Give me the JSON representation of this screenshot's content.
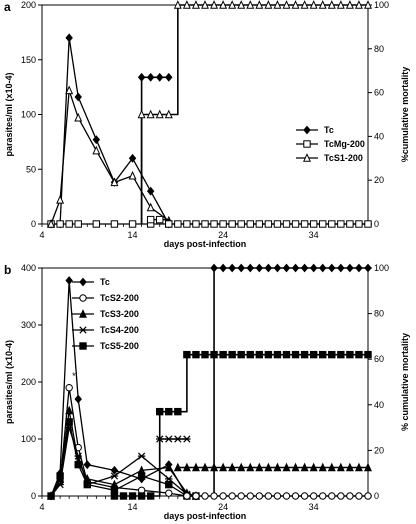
{
  "chart_data": [
    {
      "panel": "a",
      "type": "line",
      "xlabel": "days post-infection",
      "ylabel": "parasites/ml (x10-4)",
      "y2label": "%cumulative mortality",
      "xlim": [
        4,
        40
      ],
      "ylim": [
        0,
        200
      ],
      "y2lim": [
        0,
        100
      ],
      "xticks": [
        4,
        14,
        24,
        34
      ],
      "yticks": [
        0,
        50,
        100,
        150,
        200
      ],
      "y2ticks": [
        0,
        20,
        40,
        60,
        80,
        100
      ],
      "legend_position": "right",
      "legend": [
        {
          "label": "Tc",
          "marker": "diamond-filled"
        },
        {
          "label": "TcMg-200",
          "marker": "square-open"
        },
        {
          "label": "TcS1-200",
          "marker": "triangle-open"
        }
      ],
      "parasitemia": [
        {
          "name": "Tc",
          "marker": "diamond-filled",
          "x": [
            5,
            6,
            7,
            8,
            10,
            12,
            14,
            16,
            18
          ],
          "y": [
            0,
            0,
            170,
            116,
            77,
            38,
            60,
            30,
            0
          ]
        },
        {
          "name": "TcMg-200",
          "marker": "square-open",
          "x": [
            5,
            6,
            7,
            8,
            10,
            12,
            14,
            16,
            18
          ],
          "y": [
            0,
            0,
            0,
            0,
            0,
            0,
            0,
            0,
            0
          ]
        },
        {
          "name": "TcS1-200",
          "marker": "triangle-open",
          "x": [
            5,
            6,
            7,
            8,
            10,
            12,
            14,
            16,
            18
          ],
          "y": [
            0,
            22,
            122,
            97,
            67,
            38,
            44,
            15,
            3
          ]
        }
      ],
      "mortality": [
        {
          "name": "Tc",
          "marker": "diamond-filled",
          "x": [
            15,
            16,
            17,
            18
          ],
          "y": [
            67,
            67,
            67,
            67
          ],
          "step_from": 0,
          "step_x": 15
        },
        {
          "name": "TcS1-200",
          "marker": "triangle-open",
          "x": [
            15,
            16,
            17,
            18,
            19,
            20,
            21,
            22,
            23,
            24,
            25,
            26,
            27,
            28,
            29,
            30,
            31,
            32,
            33,
            34,
            35,
            36,
            37,
            38,
            39,
            40
          ],
          "y": [
            50,
            50,
            50,
            50,
            100,
            100,
            100,
            100,
            100,
            100,
            100,
            100,
            100,
            100,
            100,
            100,
            100,
            100,
            100,
            100,
            100,
            100,
            100,
            100,
            100,
            100
          ],
          "step_from": 0,
          "step_x": 15
        },
        {
          "name": "TcMg-200",
          "marker": "square-open",
          "x": [
            16,
            17,
            18,
            19,
            20,
            21,
            22,
            23,
            24,
            25,
            26,
            27,
            28,
            29,
            30,
            31,
            32,
            33,
            34,
            35,
            36,
            37,
            38,
            39,
            40
          ],
          "y": [
            2,
            2,
            0,
            0,
            0,
            0,
            0,
            0,
            0,
            0,
            0,
            0,
            0,
            0,
            0,
            0,
            0,
            0,
            0,
            0,
            0,
            0,
            0,
            0,
            0
          ]
        }
      ]
    },
    {
      "panel": "b",
      "type": "line",
      "xlabel": "days post-infection",
      "ylabel": "parasites/ml (x10-4)",
      "y2label": "% cumulative mortality",
      "xlim": [
        4,
        40
      ],
      "ylim": [
        0,
        400
      ],
      "y2lim": [
        0,
        100
      ],
      "xticks": [
        4,
        14,
        24,
        34
      ],
      "yticks": [
        0,
        100,
        200,
        300,
        400
      ],
      "y2ticks": [
        0,
        20,
        40,
        60,
        80,
        100
      ],
      "legend_position": "top-left",
      "legend": [
        {
          "label": "Tc",
          "marker": "diamond-filled"
        },
        {
          "label": "TcS2-200",
          "marker": "circle-open"
        },
        {
          "label": "TcS3-200",
          "marker": "triangle-filled"
        },
        {
          "label": "TcS4-200",
          "marker": "asterisk"
        },
        {
          "label": "TcS5-200",
          "marker": "square-filled"
        }
      ],
      "annotations": [
        "*"
      ],
      "parasitemia": [
        {
          "name": "Tc",
          "marker": "diamond-filled",
          "x": [
            5,
            6,
            7,
            8,
            9,
            12,
            15,
            18,
            20,
            21
          ],
          "y": [
            0,
            40,
            378,
            170,
            55,
            45,
            30,
            55,
            0,
            0
          ]
        },
        {
          "name": "TcS2-200",
          "marker": "circle-open",
          "x": [
            5,
            6,
            7,
            8,
            9,
            12,
            15,
            18,
            20,
            21
          ],
          "y": [
            0,
            25,
            190,
            85,
            25,
            15,
            10,
            5,
            0,
            0
          ]
        },
        {
          "name": "TcS3-200",
          "marker": "triangle-filled",
          "x": [
            5,
            6,
            7,
            8,
            9,
            12,
            15,
            18,
            20,
            21
          ],
          "y": [
            0,
            30,
            150,
            60,
            30,
            20,
            45,
            50,
            5,
            0
          ]
        },
        {
          "name": "TcS4-200",
          "marker": "asterisk",
          "x": [
            5,
            6,
            7,
            8,
            9,
            12,
            15,
            18,
            20,
            21
          ],
          "y": [
            0,
            20,
            120,
            70,
            20,
            35,
            70,
            30,
            3,
            0
          ]
        },
        {
          "name": "TcS5-200",
          "marker": "square-filled",
          "x": [
            5,
            6,
            7,
            8,
            9,
            12,
            15,
            18,
            20,
            21
          ],
          "y": [
            0,
            35,
            130,
            55,
            20,
            10,
            35,
            20,
            0,
            0
          ]
        }
      ],
      "mortality": [
        {
          "name": "Tc",
          "marker": "diamond-filled",
          "x": [
            23,
            24,
            25,
            26,
            27,
            28,
            29,
            30,
            31,
            32,
            33,
            34,
            35,
            36,
            37,
            38,
            39,
            40
          ],
          "y": [
            100,
            100,
            100,
            100,
            100,
            100,
            100,
            100,
            100,
            100,
            100,
            100,
            100,
            100,
            100,
            100,
            100,
            100
          ],
          "step_from": 0,
          "step_x": 23
        },
        {
          "name": "TcS5-200",
          "marker": "square-filled",
          "x": [
            12,
            13,
            14,
            15,
            16,
            17,
            18,
            19,
            20,
            21,
            22,
            23,
            24,
            25,
            26,
            27,
            28,
            29,
            30,
            31,
            32,
            33,
            34,
            35,
            36,
            37,
            38,
            39,
            40
          ],
          "y": [
            0,
            0,
            0,
            0,
            0,
            37,
            37,
            37,
            62,
            62,
            62,
            62,
            62,
            62,
            62,
            62,
            62,
            62,
            62,
            62,
            62,
            62,
            62,
            62,
            62,
            62,
            62,
            62,
            62
          ]
        },
        {
          "name": "TcS4-200",
          "marker": "asterisk",
          "x": [
            17,
            18,
            19,
            20
          ],
          "y": [
            25,
            25,
            25,
            25
          ],
          "step_from": 0,
          "step_x": 17
        },
        {
          "name": "TcS3-200",
          "marker": "triangle-filled",
          "x": [
            19,
            20,
            21,
            22,
            23,
            24,
            25,
            26,
            27,
            28,
            29,
            30,
            31,
            32,
            33,
            34,
            35,
            36,
            37,
            38,
            39,
            40
          ],
          "y": [
            12.5,
            12.5,
            12.5,
            12.5,
            12.5,
            12.5,
            12.5,
            12.5,
            12.5,
            12.5,
            12.5,
            12.5,
            12.5,
            12.5,
            12.5,
            12.5,
            12.5,
            12.5,
            12.5,
            12.5,
            12.5,
            12.5
          ]
        },
        {
          "name": "TcS2-200",
          "marker": "circle-open",
          "x": [
            20,
            21,
            22,
            23,
            24,
            25,
            26,
            27,
            28,
            29,
            30,
            31,
            32,
            33,
            34,
            35,
            36,
            37,
            38,
            39,
            40
          ],
          "y": [
            0,
            0,
            0,
            0,
            0,
            0,
            0,
            0,
            0,
            0,
            0,
            0,
            0,
            0,
            0,
            0,
            0,
            0,
            0,
            0,
            0
          ]
        }
      ]
    }
  ]
}
